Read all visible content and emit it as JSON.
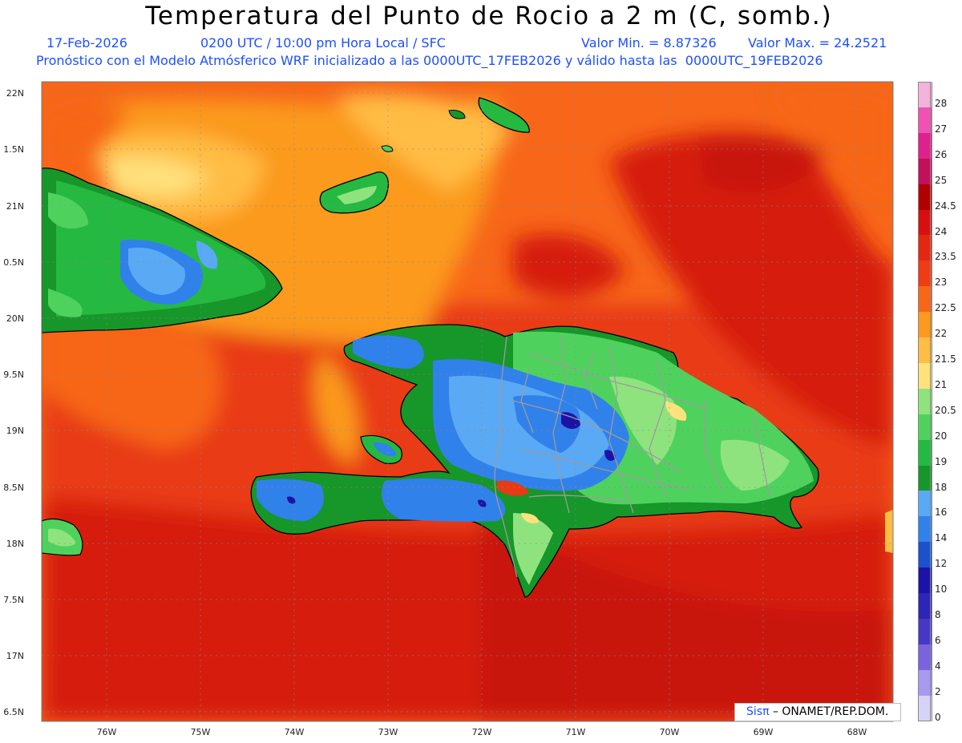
{
  "title": "Temperatura del Punto de Rocio a 2 m (C, somb.)",
  "date": "17-Feb-2026",
  "time": "0200 UTC / 10:00 pm Hora Local / SFC",
  "min_label": "Valor Min. = 8.87326",
  "max_label": "Valor Max. = 24.2521",
  "run_info": "Pronóstico con el Modelo Atmósferico WRF inicializado a las 0000UTC_17FEB2026 y válido hasta las  0000UTC_19FEB2026",
  "lat_labels": [
    "22N",
    "1.5N",
    "21N",
    "0.5N",
    "20N",
    "9.5N",
    "19N",
    "8.5N",
    "18N",
    "7.5N",
    "17N",
    "6.5N"
  ],
  "lon_labels": [
    "76W",
    "75W",
    "74W",
    "73W",
    "72W",
    "71W",
    "70W",
    "69W",
    "68W"
  ],
  "colorbar": [
    {
      "label": "28",
      "color": "#f4b3da"
    },
    {
      "label": "27",
      "color": "#ef52b3"
    },
    {
      "label": "26",
      "color": "#e0208c"
    },
    {
      "label": "25",
      "color": "#c2105a"
    },
    {
      "label": "24.5",
      "color": "#b00000"
    },
    {
      "label": "24",
      "color": "#d80f0f"
    },
    {
      "label": "23.5",
      "color": "#e32810"
    },
    {
      "label": "23",
      "color": "#ef3c14"
    },
    {
      "label": "22.5",
      "color": "#f76619"
    },
    {
      "label": "22",
      "color": "#fb9a1f"
    },
    {
      "label": "21.5",
      "color": "#ffbd45"
    },
    {
      "label": "21",
      "color": "#ffe17d"
    },
    {
      "label": "20.5",
      "color": "#8fe37e"
    },
    {
      "label": "20",
      "color": "#4fd25d"
    },
    {
      "label": "19",
      "color": "#25b942"
    },
    {
      "label": "18",
      "color": "#17962a"
    },
    {
      "label": "16",
      "color": "#5aa9f5"
    },
    {
      "label": "14",
      "color": "#3181ea"
    },
    {
      "label": "12",
      "color": "#1a52cc"
    },
    {
      "label": "10",
      "color": "#1c13a6"
    },
    {
      "label": "8",
      "color": "#2d25b5"
    },
    {
      "label": "6",
      "color": "#4638c4"
    },
    {
      "label": "4",
      "color": "#7a63dd"
    },
    {
      "label": "2",
      "color": "#a89af0"
    },
    {
      "label": "0",
      "color": "#d7d3f7"
    }
  ],
  "credit": {
    "brand": "Sisπ",
    "text": " – ONAMET/REP.DOM."
  }
}
